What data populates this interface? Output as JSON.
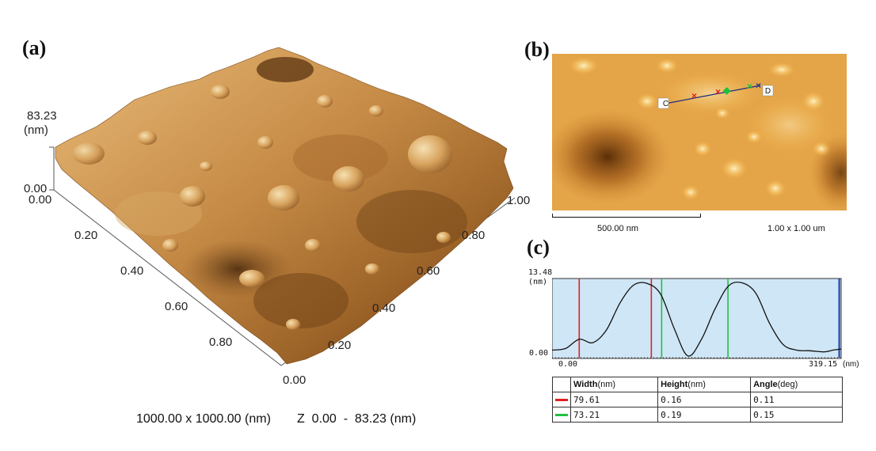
{
  "panels": {
    "a": {
      "label": "(a)",
      "z_max_label": "83.23",
      "z_unit": "(nm)",
      "z_min_label": "0.00",
      "left_axis_ticks": [
        "0.00",
        "0.20",
        "0.40",
        "0.60",
        "0.80"
      ],
      "right_axis_ticks": [
        "0.00",
        "0.20",
        "0.40",
        "0.60",
        "0.80",
        "1.00"
      ],
      "scan_info": {
        "size": "1000.00 x 1000.00 (nm)",
        "z_range": "Z  0.00  -  83.23 (nm)"
      }
    },
    "b": {
      "label": "(b)",
      "marker_c": "C",
      "marker_d": "D",
      "scalebar_label": "500.00 nm",
      "image_size": "1.00 x 1.00 um"
    },
    "c": {
      "label": "(c)",
      "y_max": "13.48",
      "y_unit": "(nm)",
      "y_min": "0.00",
      "x_min": "0.00",
      "x_max": "319.15",
      "x_unit": "(nm)",
      "table": {
        "headers": [
          {
            "name": "Width",
            "unit": "(nm)"
          },
          {
            "name": "Height",
            "unit": "(nm)"
          },
          {
            "name": "Angle",
            "unit": "(deg)"
          }
        ],
        "rows": [
          {
            "color": "#e02020",
            "width": "79.61",
            "height": "0.16",
            "angle": "0.11"
          },
          {
            "color": "#20c040",
            "width": "73.21",
            "height": "0.19",
            "angle": "0.15"
          }
        ]
      }
    }
  },
  "chart_data": {
    "type": "line",
    "title": "",
    "xlabel": "(nm)",
    "ylabel": "(nm)",
    "xlim": [
      0,
      319.15
    ],
    "ylim": [
      0,
      13.48
    ],
    "series": [
      {
        "x": [
          0,
          15,
          30,
          45,
          60,
          75,
          90,
          105,
          120,
          135,
          150,
          165,
          180,
          195,
          210,
          225,
          240,
          255,
          270,
          285,
          300,
          310,
          319.15
        ],
        "y": [
          1.3,
          1.6,
          3.2,
          2.6,
          4.8,
          9.5,
          12.6,
          12.9,
          11.0,
          5.0,
          0.3,
          3.2,
          8.5,
          12.5,
          13.0,
          11.2,
          6.0,
          2.3,
          1.3,
          1.2,
          1.0,
          1.3,
          1.5
        ]
      }
    ],
    "cursors": [
      {
        "color": "#e02020",
        "x": [
          30,
          109.61
        ]
      },
      {
        "color": "#20c040",
        "x": [
          121,
          194.21
        ]
      }
    ],
    "end_cursor": {
      "color": "#1a3aa8",
      "x": 317
    }
  }
}
